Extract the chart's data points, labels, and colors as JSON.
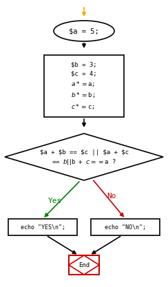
{
  "bg_color": "#ffffff",
  "arrow_color_main": "#000000",
  "arrow_color_start": "#ffa500",
  "arrow_color_yes": "#008000",
  "arrow_color_no": "#cc0000",
  "oval_text": "$a = 5;",
  "rect_text": "$b = 3;\n$c = 4;\n$a *= $a;\n$b *= $b;\n$c *= $c;",
  "diamond_text_line1": "$a + $b == $c || $a + $c",
  "diamond_text_line2": "== $b || $b + $c == $a ?",
  "yes_text": "Yes",
  "no_text": "No",
  "rect_yes_text": "echo \"YES\\n\";",
  "rect_no_text": "echo \"NO\\n\";",
  "end_text": "End",
  "end_rect_color": "#cc0000",
  "font_family": "monospace",
  "font_size": 6.5,
  "lw": 1.2
}
